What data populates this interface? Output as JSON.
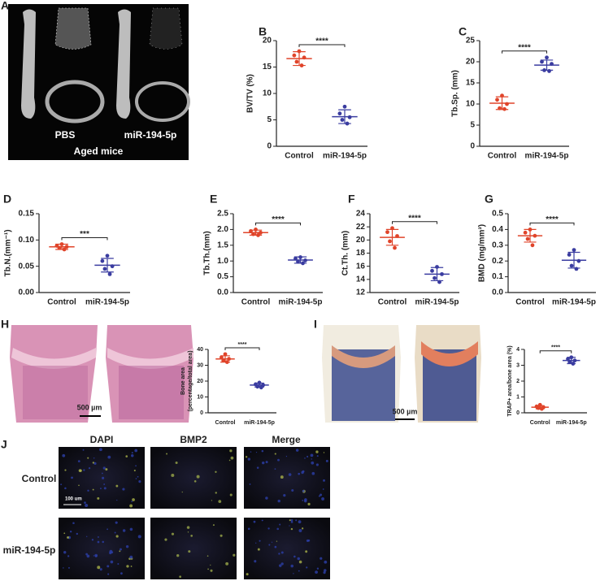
{
  "figure": {
    "A": {
      "panel": "A",
      "left": "PBS",
      "right": "miR-194-5p",
      "caption": "Aged mice"
    },
    "H": {
      "panel": "H",
      "scale": "500 µm"
    },
    "I": {
      "panel": "I",
      "scale": "500 µm"
    },
    "J": {
      "panel": "J",
      "columns": [
        "DAPI",
        "BMP2",
        "Merge"
      ],
      "rows": [
        "Control",
        "miR-194-5p"
      ],
      "scale": "100 um"
    }
  },
  "chart_data": [
    {
      "type": "dot",
      "panel": "B",
      "ylabel": [
        "BV/TV (%)"
      ],
      "categories": [
        "Control",
        "miR-194-5p"
      ],
      "ylim": [
        0,
        20
      ],
      "yticks": [
        0,
        5,
        10,
        15,
        20
      ],
      "significance": "****",
      "groups": [
        {
          "color": "#e0442a",
          "values": [
            18.0,
            17.2,
            16.8,
            16.0,
            15.3
          ],
          "mean": 16.6,
          "sd": 1.3
        },
        {
          "color": "#3a3ca0",
          "values": [
            7.5,
            6.2,
            5.5,
            5.0,
            4.3
          ],
          "mean": 5.6,
          "sd": 1.3
        }
      ]
    },
    {
      "type": "dot",
      "panel": "C",
      "ylabel": [
        "Tb.Sp. (mm)"
      ],
      "categories": [
        "Control",
        "miR-194-5p"
      ],
      "ylim": [
        0,
        25
      ],
      "yticks": [
        0,
        5,
        10,
        15,
        20,
        25
      ],
      "significance": "****",
      "groups": [
        {
          "color": "#e0442a",
          "values": [
            12.0,
            11.0,
            10.0,
            9.0,
            8.8
          ],
          "mean": 10.2,
          "sd": 1.5
        },
        {
          "color": "#3a3ca0",
          "values": [
            21.0,
            20.0,
            19.5,
            18.0,
            17.8
          ],
          "mean": 19.2,
          "sd": 1.2
        }
      ]
    },
    {
      "type": "dot",
      "panel": "D",
      "ylabel": [
        "Tb.N.(mm⁻¹)"
      ],
      "categories": [
        "Control",
        "miR-194-5p"
      ],
      "ylim": [
        0,
        0.15
      ],
      "yticks": [
        {
          "value": 0,
          "label": "0.00"
        },
        {
          "value": 0.05,
          "label": "0.05"
        },
        {
          "value": 0.1,
          "label": "0.10"
        },
        {
          "value": 0.15,
          "label": "0.15"
        }
      ],
      "significance": "***",
      "groups": [
        {
          "color": "#e0442a",
          "values": [
            0.092,
            0.089,
            0.087,
            0.085,
            0.082
          ],
          "mean": 0.087,
          "sd": 0.005
        },
        {
          "color": "#3a3ca0",
          "values": [
            0.07,
            0.06,
            0.05,
            0.045,
            0.035
          ],
          "mean": 0.052,
          "sd": 0.013
        }
      ]
    },
    {
      "type": "dot",
      "panel": "E",
      "ylabel": [
        "Tb.Th.(mm)"
      ],
      "categories": [
        "Control",
        "miR-194-5p"
      ],
      "ylim": [
        0,
        2.5
      ],
      "yticks": [
        {
          "value": 0,
          "label": "0.0"
        },
        0.5,
        {
          "value": 1,
          "label": "1.0"
        },
        1.5,
        {
          "value": 2,
          "label": "2.0"
        },
        2.5
      ],
      "significance": "****",
      "groups": [
        {
          "color": "#e0442a",
          "values": [
            2.0,
            1.95,
            1.9,
            1.85,
            1.82
          ],
          "mean": 1.9,
          "sd": 0.08
        },
        {
          "color": "#3a3ca0",
          "values": [
            1.12,
            1.08,
            1.02,
            0.98,
            0.93
          ],
          "mean": 1.03,
          "sd": 0.1
        }
      ]
    },
    {
      "type": "dot",
      "panel": "F",
      "ylabel": [
        "Ct.Th. (mm)"
      ],
      "categories": [
        "Control",
        "miR-194-5p"
      ],
      "ylim": [
        12,
        24
      ],
      "yticks": [
        12,
        14,
        16,
        18,
        20,
        22,
        24
      ],
      "significance": "****",
      "groups": [
        {
          "color": "#e0442a",
          "values": [
            21.8,
            21.2,
            20.6,
            19.8,
            18.8
          ],
          "mean": 20.4,
          "sd": 1.2
        },
        {
          "color": "#3a3ca0",
          "values": [
            15.9,
            15.3,
            14.8,
            14.2,
            13.6
          ],
          "mean": 14.8,
          "sd": 1.0
        }
      ]
    },
    {
      "type": "dot",
      "panel": "G",
      "ylabel": [
        "BMD (mg/mm³)"
      ],
      "categories": [
        "Control",
        "miR-194-5p"
      ],
      "ylim": [
        0,
        0.5
      ],
      "yticks": [
        {
          "value": 0,
          "label": "0.0"
        },
        0.1,
        0.2,
        0.3,
        0.4,
        0.5
      ],
      "significance": "****",
      "groups": [
        {
          "color": "#e0442a",
          "values": [
            0.4,
            0.38,
            0.36,
            0.34,
            0.3
          ],
          "mean": 0.36,
          "sd": 0.04
        },
        {
          "color": "#3a3ca0",
          "values": [
            0.27,
            0.24,
            0.2,
            0.17,
            0.15
          ],
          "mean": 0.205,
          "sd": 0.05
        }
      ]
    },
    {
      "type": "dot",
      "ylabel": [
        "Bone area",
        "(percentage/total area)"
      ],
      "categories": [
        "Control",
        "miR-194-5p"
      ],
      "ylim": [
        0,
        40
      ],
      "yticks": [
        0,
        10,
        20,
        30,
        40
      ],
      "significance": "****",
      "groups": [
        {
          "color": "#e0442a",
          "values": [
            37,
            35,
            34,
            33,
            32
          ],
          "mean": 34,
          "sd": 2
        },
        {
          "color": "#3a3ca0",
          "values": [
            19,
            18,
            17.5,
            16.5,
            16
          ],
          "mean": 17.5,
          "sd": 1.2
        }
      ]
    },
    {
      "type": "dot",
      "ylabel": [
        "TRAP+ area/bone area (%)"
      ],
      "categories": [
        "Control",
        "miR-194-5p"
      ],
      "ylim": [
        0,
        4
      ],
      "yticks": [
        0,
        1,
        2,
        3,
        4
      ],
      "significance": "****",
      "groups": [
        {
          "color": "#e0442a",
          "values": [
            0.5,
            0.4,
            0.35,
            0.3,
            0.25
          ],
          "mean": 0.35,
          "sd": 0.1
        },
        {
          "color": "#3a3ca0",
          "values": [
            3.5,
            3.4,
            3.3,
            3.2,
            3.1
          ],
          "mean": 3.3,
          "sd": 0.2
        }
      ]
    }
  ]
}
